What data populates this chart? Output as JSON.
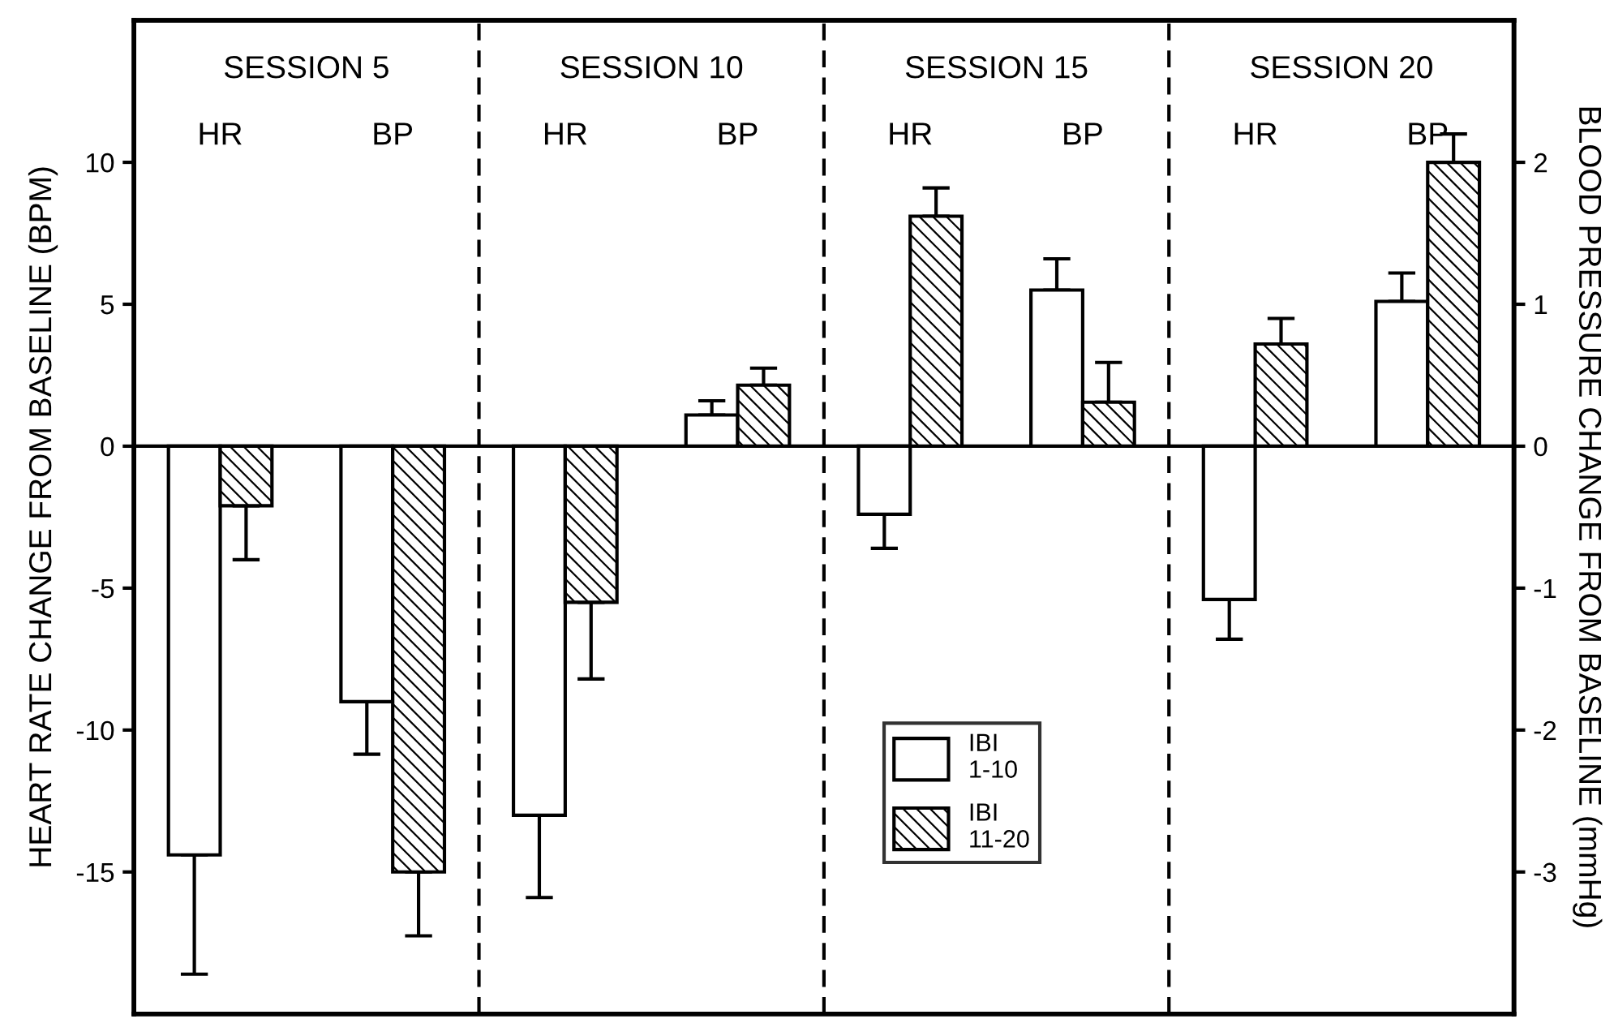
{
  "chart_data": {
    "type": "bar",
    "ylabel": "HEART RATE CHANGE FROM BASELINE (BPM)",
    "y2label": "BLOOD PRESSURE CHANGE FROM BASELINE (mmHg)",
    "categories": [
      "HR",
      "BP",
      "HR",
      "BP",
      "HR",
      "BP",
      "HR",
      "BP"
    ],
    "annotations": [
      "SESSION 5",
      "SESSION 10",
      "SESSION 15",
      "SESSION 20"
    ],
    "series": [
      {
        "name": "IBI\n1-10",
        "color": "#ffffff",
        "values": [
          -14.4,
          null,
          -13.0,
          null,
          -2.4,
          null,
          -5.4,
          null
        ],
        "errors": [
          [
            -18.6,
            -14.4
          ],
          null,
          [
            -15.9,
            -13.0
          ],
          null,
          [
            -3.6,
            -2.4
          ],
          null,
          [
            -6.8,
            -5.4
          ],
          null
        ]
      },
      {
        "name": "IBI\n11-20",
        "color": "#000000",
        "values": [
          -2.1,
          null,
          -5.5,
          null,
          8.1,
          null,
          3.6,
          null
        ],
        "errors": [
          [
            -4.0,
            -2.1
          ],
          null,
          [
            -8.2,
            -5.5
          ],
          null,
          [
            8.1,
            9.1
          ],
          null,
          [
            3.6,
            4.5
          ],
          null
        ]
      },
      {
        "color": "#ffffff",
        "axis": "y2",
        "values": [
          null,
          -1.8,
          null,
          0.22,
          null,
          1.1,
          null,
          1.02
        ],
        "errors": [
          null,
          [
            -2.17,
            -1.8
          ],
          null,
          [
            0.22,
            0.32
          ],
          null,
          [
            1.1,
            1.32
          ],
          null,
          [
            1.02,
            1.22
          ]
        ]
      },
      {
        "color": "#000000",
        "axis": "y2",
        "values": [
          null,
          -3.0,
          null,
          0.43,
          null,
          0.31,
          null,
          2.0
        ],
        "errors": [
          null,
          [
            -3.45,
            -3.0
          ],
          null,
          [
            0.43,
            0.55
          ],
          null,
          [
            0.31,
            0.59
          ],
          null,
          [
            2.0,
            2.2
          ]
        ]
      }
    ],
    "ylim": [
      -20,
      15
    ],
    "yticks": [
      -15,
      -10,
      -5,
      0,
      5,
      10
    ],
    "y2lim": [
      -4,
      3
    ],
    "y2ticks": [
      -3,
      -2,
      -1,
      0,
      1,
      2
    ],
    "legend": "bottom",
    "grid": false
  }
}
